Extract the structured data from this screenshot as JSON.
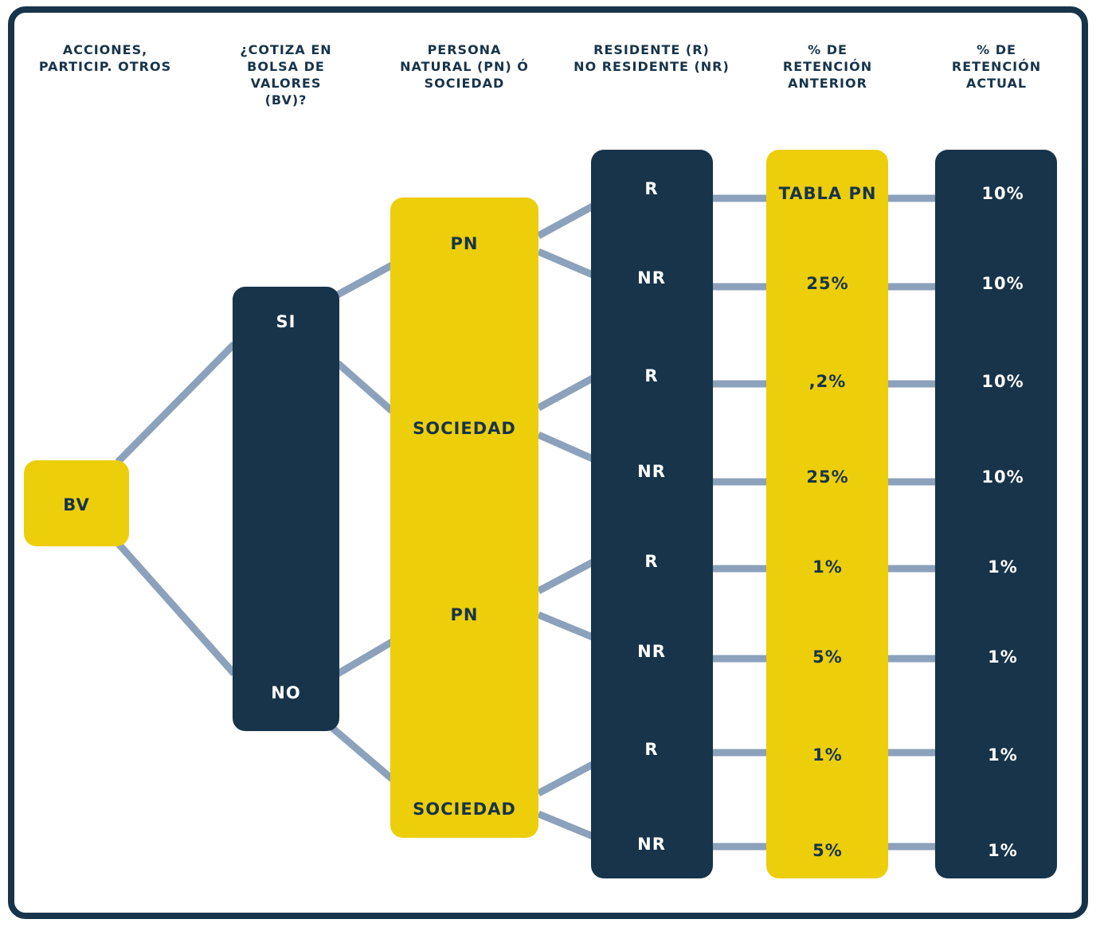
{
  "headers": {
    "col1": "ACCIONES,\nPARTICIP. OTROS",
    "col2": "¿COTIZA EN\nBOLSA DE\nVALORES\n(BV)?",
    "col3": "PERSONA\nNATURAL (PN) Ó\nSOCIEDAD",
    "col4": "RESIDENTE (R)\nNO RESIDENTE (NR)",
    "col5": "% DE\nRETENCIÓN\nANTERIOR",
    "col6": "% DE\nRETENCIÓN\nACTUAL"
  },
  "root": {
    "label": "BV"
  },
  "cotiza": {
    "si": "SI",
    "no": "NO"
  },
  "persona": {
    "pn_1": "PN",
    "sociedad_1": "SOCIEDAD",
    "pn_2": "PN",
    "sociedad_2": "SOCIEDAD"
  },
  "residencia": [
    "R",
    "NR",
    "R",
    "NR",
    "R",
    "NR",
    "R",
    "NR"
  ],
  "retencion_anterior": [
    "TABLA PN",
    "25%",
    ",2%",
    "25%",
    "1%",
    "5%",
    "1%",
    "5%"
  ],
  "retencion_actual": [
    "10%",
    "10%",
    "10%",
    "10%",
    "1%",
    "1%",
    "1%",
    "1%"
  ],
  "colors": {
    "navy": "#17344a",
    "yellow": "#ecce0b",
    "connector": "#8ca1bb",
    "background": "#ffffff"
  }
}
